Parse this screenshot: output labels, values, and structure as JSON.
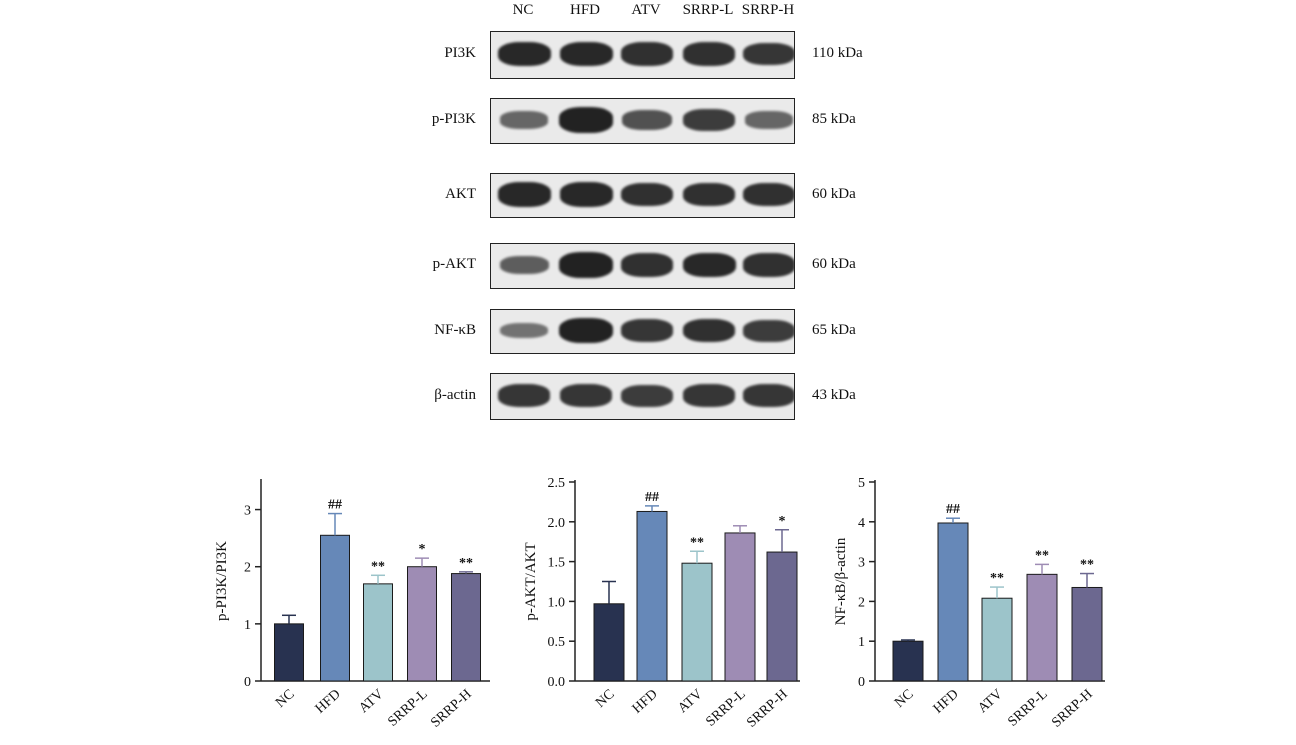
{
  "blot": {
    "lanes": [
      "NC",
      "HFD",
      "ATV",
      "SRRP-L",
      "SRRP-H"
    ],
    "rows": [
      {
        "label": "PI3K",
        "size": "110 kDa",
        "intensity": [
          0.9,
          0.9,
          0.85,
          0.85,
          0.8
        ]
      },
      {
        "label": "p-PI3K",
        "size": "85 kDa",
        "intensity": [
          0.45,
          0.95,
          0.6,
          0.75,
          0.45
        ]
      },
      {
        "label": "AKT",
        "size": "60 kDa",
        "intensity": [
          0.9,
          0.9,
          0.85,
          0.85,
          0.85
        ]
      },
      {
        "label": "p-AKT",
        "size": "60 kDa",
        "intensity": [
          0.5,
          0.95,
          0.85,
          0.9,
          0.85
        ]
      },
      {
        "label": "NF-κB",
        "size": "65 kDa",
        "intensity": [
          0.35,
          0.95,
          0.8,
          0.85,
          0.75
        ]
      },
      {
        "label": "β-actin",
        "size": "43 kDa",
        "intensity": [
          0.8,
          0.8,
          0.75,
          0.8,
          0.8
        ]
      }
    ]
  },
  "chart_data": [
    {
      "type": "bar",
      "categories": [
        "NC",
        "HFD",
        "ATV",
        "SRRP-L",
        "SRRP-H"
      ],
      "values": [
        1.0,
        2.55,
        1.7,
        2.0,
        1.88
      ],
      "errors": [
        0.15,
        0.38,
        0.15,
        0.15,
        0.03
      ],
      "annotations": [
        "",
        "##",
        "**",
        "*",
        "**"
      ],
      "ylabel": "p-PI3K/PI3K",
      "ylim": [
        0,
        3.5
      ],
      "yticks": [
        0,
        1,
        2,
        3
      ],
      "ytick_labels": [
        "0",
        "1",
        "2",
        "3"
      ]
    },
    {
      "type": "bar",
      "categories": [
        "NC",
        "HFD",
        "ATV",
        "SRRP-L",
        "SRRP-H"
      ],
      "values": [
        0.97,
        2.13,
        1.48,
        1.86,
        1.62
      ],
      "errors": [
        0.28,
        0.07,
        0.15,
        0.09,
        0.28
      ],
      "annotations": [
        "",
        "##",
        "**",
        "",
        "*"
      ],
      "ylabel": "p-AKT/AKT",
      "ylim": [
        0,
        2.5
      ],
      "yticks": [
        0,
        0.5,
        1.0,
        1.5,
        2.0,
        2.5
      ],
      "ytick_labels": [
        "0.0",
        "0.5",
        "1.0",
        "1.5",
        "2.0",
        "2.5"
      ]
    },
    {
      "type": "bar",
      "categories": [
        "NC",
        "HFD",
        "ATV",
        "SRRP-L",
        "SRRP-H"
      ],
      "values": [
        1.0,
        3.97,
        2.08,
        2.68,
        2.35
      ],
      "errors": [
        0.03,
        0.12,
        0.28,
        0.25,
        0.35
      ],
      "annotations": [
        "",
        "##",
        "**",
        "**",
        "**"
      ],
      "ylabel": "NF-κB/β-actin",
      "ylim": [
        0,
        5
      ],
      "yticks": [
        0,
        1,
        2,
        3,
        4,
        5
      ],
      "ytick_labels": [
        "0",
        "1",
        "2",
        "3",
        "4",
        "5"
      ]
    }
  ],
  "colors": {
    "bars": [
      "#283250",
      "#6688b8",
      "#9cc4ca",
      "#9e8cb4",
      "#6c6890"
    ],
    "errorbars": [
      "#283250",
      "#6688b8",
      "#9cc4ca",
      "#9e8cb4",
      "#6c6890"
    ]
  }
}
